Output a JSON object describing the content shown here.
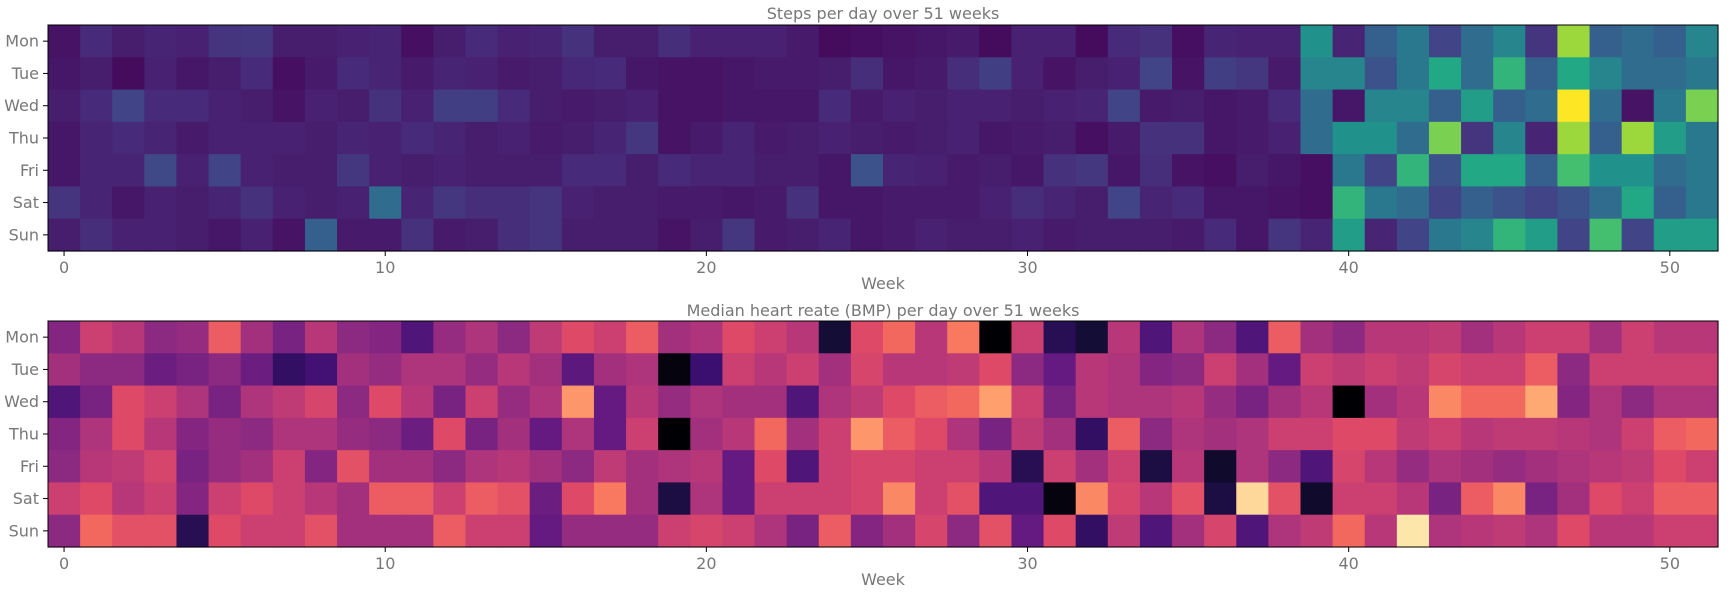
{
  "chart_data": [
    {
      "type": "heatmap",
      "title": "Steps per day over 51 weeks",
      "xlabel": "Week",
      "ylabel": "",
      "colormap": "viridis",
      "rows": [
        "Mon",
        "Tue",
        "Wed",
        "Thu",
        "Fri",
        "Sat",
        "Sun"
      ],
      "x": [
        0,
        1,
        2,
        3,
        4,
        5,
        6,
        7,
        8,
        9,
        10,
        11,
        12,
        13,
        14,
        15,
        16,
        17,
        18,
        19,
        20,
        21,
        22,
        23,
        24,
        25,
        26,
        27,
        28,
        29,
        30,
        31,
        32,
        33,
        34,
        35,
        36,
        37,
        38,
        39,
        40,
        41,
        42,
        43,
        44,
        45,
        46,
        47,
        48,
        49,
        50,
        51
      ],
      "xticks": [
        0,
        10,
        20,
        30,
        40,
        50
      ],
      "xlim": [
        -0.5,
        51.5
      ],
      "vrange": [
        0,
        1
      ],
      "values": [
        [
          0.05,
          0.12,
          0.08,
          0.1,
          0.09,
          0.15,
          0.16,
          0.08,
          0.08,
          0.09,
          0.1,
          0.04,
          0.08,
          0.12,
          0.09,
          0.1,
          0.14,
          0.08,
          0.08,
          0.13,
          0.09,
          0.09,
          0.09,
          0.07,
          0.03,
          0.04,
          0.05,
          0.06,
          0.07,
          0.03,
          0.09,
          0.09,
          0.03,
          0.12,
          0.14,
          0.04,
          0.1,
          0.09,
          0.09,
          0.5,
          0.1,
          0.3,
          0.4,
          0.2,
          0.35,
          0.45,
          0.15,
          0.85,
          0.3,
          0.35,
          0.3,
          0.45
        ],
        [
          0.06,
          0.08,
          0.03,
          0.09,
          0.06,
          0.08,
          0.12,
          0.04,
          0.07,
          0.12,
          0.1,
          0.07,
          0.1,
          0.09,
          0.07,
          0.08,
          0.11,
          0.12,
          0.06,
          0.05,
          0.05,
          0.06,
          0.07,
          0.07,
          0.08,
          0.13,
          0.06,
          0.07,
          0.13,
          0.18,
          0.09,
          0.05,
          0.08,
          0.09,
          0.2,
          0.05,
          0.18,
          0.16,
          0.07,
          0.45,
          0.45,
          0.25,
          0.4,
          0.6,
          0.35,
          0.65,
          0.3,
          0.6,
          0.45,
          0.35,
          0.35,
          0.4
        ],
        [
          0.08,
          0.12,
          0.2,
          0.12,
          0.12,
          0.09,
          0.08,
          0.05,
          0.09,
          0.08,
          0.14,
          0.09,
          0.18,
          0.18,
          0.12,
          0.08,
          0.07,
          0.08,
          0.09,
          0.05,
          0.05,
          0.06,
          0.06,
          0.06,
          0.12,
          0.07,
          0.09,
          0.08,
          0.09,
          0.09,
          0.08,
          0.09,
          0.1,
          0.2,
          0.07,
          0.08,
          0.06,
          0.07,
          0.12,
          0.35,
          0.06,
          0.45,
          0.45,
          0.3,
          0.55,
          0.3,
          0.35,
          1.0,
          0.35,
          0.05,
          0.4,
          0.8
        ],
        [
          0.06,
          0.1,
          0.12,
          0.1,
          0.07,
          0.09,
          0.09,
          0.09,
          0.08,
          0.1,
          0.09,
          0.12,
          0.1,
          0.08,
          0.09,
          0.07,
          0.08,
          0.1,
          0.16,
          0.05,
          0.07,
          0.1,
          0.07,
          0.08,
          0.09,
          0.08,
          0.07,
          0.08,
          0.09,
          0.06,
          0.07,
          0.08,
          0.04,
          0.07,
          0.14,
          0.14,
          0.06,
          0.07,
          0.09,
          0.35,
          0.5,
          0.5,
          0.35,
          0.8,
          0.15,
          0.45,
          0.1,
          0.85,
          0.3,
          0.85,
          0.55,
          0.4
        ],
        [
          0.06,
          0.1,
          0.1,
          0.22,
          0.09,
          0.2,
          0.09,
          0.08,
          0.08,
          0.16,
          0.09,
          0.08,
          0.09,
          0.08,
          0.08,
          0.08,
          0.12,
          0.12,
          0.08,
          0.12,
          0.1,
          0.1,
          0.08,
          0.08,
          0.06,
          0.25,
          0.1,
          0.09,
          0.07,
          0.08,
          0.06,
          0.14,
          0.16,
          0.06,
          0.13,
          0.05,
          0.04,
          0.08,
          0.06,
          0.04,
          0.4,
          0.2,
          0.65,
          0.25,
          0.6,
          0.6,
          0.3,
          0.7,
          0.5,
          0.5,
          0.35,
          0.4
        ],
        [
          0.15,
          0.1,
          0.06,
          0.09,
          0.08,
          0.1,
          0.14,
          0.09,
          0.08,
          0.09,
          0.35,
          0.1,
          0.16,
          0.13,
          0.13,
          0.15,
          0.09,
          0.08,
          0.08,
          0.07,
          0.07,
          0.06,
          0.07,
          0.14,
          0.06,
          0.06,
          0.07,
          0.07,
          0.07,
          0.09,
          0.13,
          0.1,
          0.08,
          0.2,
          0.1,
          0.12,
          0.06,
          0.06,
          0.05,
          0.04,
          0.65,
          0.4,
          0.35,
          0.2,
          0.3,
          0.25,
          0.2,
          0.25,
          0.35,
          0.6,
          0.3,
          0.4
        ],
        [
          0.08,
          0.13,
          0.09,
          0.09,
          0.08,
          0.06,
          0.09,
          0.05,
          0.3,
          0.07,
          0.07,
          0.14,
          0.07,
          0.08,
          0.13,
          0.15,
          0.08,
          0.08,
          0.08,
          0.05,
          0.08,
          0.16,
          0.07,
          0.08,
          0.1,
          0.06,
          0.07,
          0.09,
          0.08,
          0.08,
          0.09,
          0.07,
          0.08,
          0.08,
          0.08,
          0.07,
          0.12,
          0.06,
          0.15,
          0.1,
          0.55,
          0.1,
          0.2,
          0.4,
          0.45,
          0.65,
          0.55,
          0.2,
          0.7,
          0.2,
          0.55,
          0.55
        ]
      ]
    },
    {
      "type": "heatmap",
      "title": "Median heart reate (BMP) per day over 51 weeks",
      "xlabel": "Week",
      "ylabel": "",
      "colormap": "magma",
      "rows": [
        "Mon",
        "Tue",
        "Wed",
        "Thu",
        "Fri",
        "Sat",
        "Sun"
      ],
      "x": [
        0,
        1,
        2,
        3,
        4,
        5,
        6,
        7,
        8,
        9,
        10,
        11,
        12,
        13,
        14,
        15,
        16,
        17,
        18,
        19,
        20,
        21,
        22,
        23,
        24,
        25,
        26,
        27,
        28,
        29,
        30,
        31,
        32,
        33,
        34,
        35,
        36,
        37,
        38,
        39,
        40,
        41,
        42,
        43,
        44,
        45,
        46,
        47,
        48,
        49,
        50,
        51
      ],
      "xticks": [
        0,
        10,
        20,
        30,
        40,
        50
      ],
      "xlim": [
        -0.5,
        51.5
      ],
      "vrange": [
        0,
        1
      ],
      "values": [
        [
          0.38,
          0.55,
          0.5,
          0.4,
          0.42,
          0.65,
          0.45,
          0.35,
          0.5,
          0.4,
          0.38,
          0.25,
          0.42,
          0.48,
          0.4,
          0.52,
          0.6,
          0.55,
          0.65,
          0.45,
          0.48,
          0.6,
          0.55,
          0.5,
          0.1,
          0.6,
          0.68,
          0.5,
          0.72,
          0.0,
          0.55,
          0.15,
          0.1,
          0.5,
          0.25,
          0.48,
          0.4,
          0.25,
          0.65,
          0.45,
          0.4,
          0.5,
          0.5,
          0.52,
          0.45,
          0.5,
          0.55,
          0.55,
          0.45,
          0.55,
          0.5,
          0.5
        ],
        [
          0.45,
          0.4,
          0.4,
          0.32,
          0.35,
          0.4,
          0.32,
          0.18,
          0.22,
          0.45,
          0.42,
          0.48,
          0.48,
          0.42,
          0.5,
          0.45,
          0.28,
          0.45,
          0.48,
          0.02,
          0.2,
          0.55,
          0.5,
          0.55,
          0.45,
          0.58,
          0.5,
          0.5,
          0.52,
          0.6,
          0.4,
          0.3,
          0.5,
          0.48,
          0.38,
          0.4,
          0.55,
          0.45,
          0.3,
          0.55,
          0.52,
          0.55,
          0.52,
          0.58,
          0.55,
          0.55,
          0.65,
          0.4,
          0.55,
          0.55,
          0.55,
          0.55
        ],
        [
          0.25,
          0.35,
          0.6,
          0.55,
          0.48,
          0.35,
          0.48,
          0.52,
          0.58,
          0.4,
          0.6,
          0.5,
          0.35,
          0.55,
          0.42,
          0.48,
          0.78,
          0.3,
          0.5,
          0.42,
          0.48,
          0.45,
          0.45,
          0.25,
          0.48,
          0.52,
          0.6,
          0.65,
          0.68,
          0.8,
          0.55,
          0.35,
          0.5,
          0.48,
          0.48,
          0.5,
          0.42,
          0.35,
          0.45,
          0.5,
          0.0,
          0.45,
          0.5,
          0.75,
          0.68,
          0.68,
          0.82,
          0.38,
          0.48,
          0.4,
          0.48,
          0.48
        ],
        [
          0.38,
          0.48,
          0.6,
          0.5,
          0.38,
          0.42,
          0.4,
          0.48,
          0.48,
          0.42,
          0.4,
          0.32,
          0.6,
          0.35,
          0.45,
          0.3,
          0.48,
          0.3,
          0.55,
          0.0,
          0.45,
          0.5,
          0.68,
          0.45,
          0.55,
          0.78,
          0.65,
          0.6,
          0.48,
          0.35,
          0.52,
          0.45,
          0.18,
          0.65,
          0.4,
          0.48,
          0.45,
          0.48,
          0.55,
          0.55,
          0.6,
          0.6,
          0.52,
          0.55,
          0.5,
          0.52,
          0.52,
          0.5,
          0.48,
          0.55,
          0.65,
          0.68
        ],
        [
          0.4,
          0.5,
          0.52,
          0.58,
          0.35,
          0.42,
          0.45,
          0.55,
          0.38,
          0.62,
          0.45,
          0.45,
          0.4,
          0.48,
          0.5,
          0.45,
          0.4,
          0.52,
          0.45,
          0.48,
          0.5,
          0.3,
          0.6,
          0.25,
          0.55,
          0.58,
          0.58,
          0.55,
          0.55,
          0.5,
          0.15,
          0.55,
          0.45,
          0.55,
          0.12,
          0.5,
          0.08,
          0.48,
          0.4,
          0.25,
          0.58,
          0.5,
          0.42,
          0.48,
          0.45,
          0.42,
          0.45,
          0.48,
          0.5,
          0.52,
          0.6,
          0.55
        ],
        [
          0.55,
          0.6,
          0.5,
          0.55,
          0.38,
          0.55,
          0.6,
          0.55,
          0.5,
          0.45,
          0.65,
          0.65,
          0.55,
          0.65,
          0.62,
          0.32,
          0.6,
          0.72,
          0.45,
          0.12,
          0.48,
          0.3,
          0.55,
          0.55,
          0.55,
          0.58,
          0.75,
          0.55,
          0.62,
          0.25,
          0.25,
          0.02,
          0.75,
          0.58,
          0.5,
          0.62,
          0.12,
          0.92,
          0.62,
          0.08,
          0.55,
          0.55,
          0.5,
          0.35,
          0.65,
          0.75,
          0.35,
          0.45,
          0.6,
          0.55,
          0.65,
          0.65
        ],
        [
          0.4,
          0.68,
          0.62,
          0.62,
          0.15,
          0.6,
          0.55,
          0.55,
          0.62,
          0.45,
          0.45,
          0.45,
          0.65,
          0.55,
          0.55,
          0.3,
          0.42,
          0.42,
          0.42,
          0.55,
          0.58,
          0.55,
          0.48,
          0.35,
          0.65,
          0.38,
          0.45,
          0.58,
          0.4,
          0.62,
          0.3,
          0.6,
          0.18,
          0.52,
          0.25,
          0.45,
          0.58,
          0.25,
          0.48,
          0.52,
          0.68,
          0.5,
          0.95,
          0.48,
          0.5,
          0.52,
          0.48,
          0.6,
          0.5,
          0.5,
          0.55,
          0.55
        ]
      ]
    }
  ]
}
